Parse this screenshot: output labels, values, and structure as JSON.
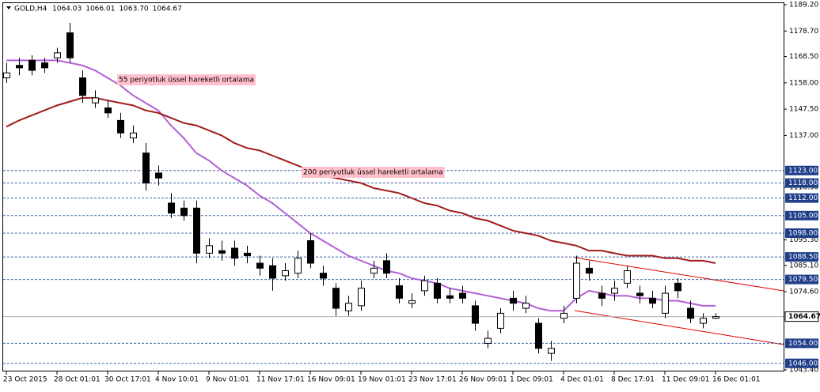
{
  "chart_data": {
    "type": "candlestick",
    "symbol": "GOLD,H4",
    "last_bar_labels": [
      "1064.03",
      "1066.01",
      "1063.70",
      "1064.67"
    ],
    "categories": [
      "23 Oct 2015",
      null,
      null,
      null,
      "28 Oct 01:01",
      null,
      null,
      null,
      "30 Oct 17:01",
      null,
      null,
      null,
      "4 Nov 10:01",
      null,
      null,
      null,
      "9 Nov 01:01",
      null,
      null,
      null,
      "11 Nov 17:01",
      null,
      null,
      null,
      "16 Nov 09:01",
      null,
      null,
      null,
      "19 Nov 01:01",
      null,
      null,
      null,
      "23 Nov 17:01",
      null,
      null,
      null,
      "26 Nov 09:01",
      null,
      null,
      null,
      "1 Dec 09:01",
      null,
      null,
      null,
      "4 Dec 01:01",
      null,
      null,
      null,
      "8 Dec 17:01",
      null,
      null,
      null,
      "11 Dec 09:01",
      null,
      null,
      null,
      "16 Dec 01:01"
    ],
    "candles": [
      [
        1160,
        1166,
        1158,
        1162
      ],
      [
        1165,
        1168,
        1161,
        1164
      ],
      [
        1167,
        1169,
        1161,
        1163
      ],
      [
        1166,
        1168,
        1162,
        1164
      ],
      [
        1168,
        1172,
        1166,
        1170
      ],
      [
        1178,
        1182,
        1166,
        1168
      ],
      [
        1160,
        1163,
        1150,
        1153
      ],
      [
        1150,
        1155,
        1148,
        1152
      ],
      [
        1148,
        1151,
        1144,
        1146
      ],
      [
        1143,
        1146,
        1136,
        1138
      ],
      [
        1136,
        1141,
        1134,
        1138
      ],
      [
        1130,
        1134,
        1115,
        1118
      ],
      [
        1122,
        1125,
        1117,
        1120
      ],
      [
        1110,
        1114,
        1104,
        1106
      ],
      [
        1108,
        1111,
        1103,
        1105
      ],
      [
        1108,
        1111,
        1086,
        1090
      ],
      [
        1090,
        1096,
        1088,
        1093
      ],
      [
        1091,
        1095,
        1087,
        1090
      ],
      [
        1092,
        1095,
        1085,
        1088
      ],
      [
        1090,
        1093,
        1086,
        1089
      ],
      [
        1086,
        1089,
        1081,
        1084
      ],
      [
        1085,
        1088,
        1075,
        1080
      ],
      [
        1081,
        1086,
        1079,
        1083
      ],
      [
        1082,
        1091,
        1080,
        1088
      ],
      [
        1095,
        1098,
        1084,
        1086
      ],
      [
        1082,
        1085,
        1077,
        1080
      ],
      [
        1076,
        1078,
        1065,
        1068
      ],
      [
        1067,
        1073,
        1065,
        1070
      ],
      [
        1069,
        1079,
        1067,
        1076
      ],
      [
        1082,
        1087,
        1080,
        1084
      ],
      [
        1087,
        1090,
        1080,
        1082
      ],
      [
        1077,
        1080,
        1070,
        1072
      ],
      [
        1070,
        1074,
        1068,
        1071
      ],
      [
        1075,
        1081,
        1073,
        1079
      ],
      [
        1078,
        1080,
        1070,
        1072
      ],
      [
        1073,
        1076,
        1070,
        1072
      ],
      [
        1074,
        1077,
        1070,
        1072
      ],
      [
        1069,
        1071,
        1059,
        1062
      ],
      [
        1054,
        1059,
        1052,
        1056
      ],
      [
        1060,
        1068,
        1058,
        1066
      ],
      [
        1072,
        1075,
        1067,
        1070
      ],
      [
        1068,
        1073,
        1066,
        1070
      ],
      [
        1062,
        1064,
        1050,
        1052
      ],
      [
        1050,
        1055,
        1047,
        1052
      ],
      [
        1064,
        1069,
        1062,
        1066
      ],
      [
        1072,
        1089,
        1070,
        1086
      ],
      [
        1084,
        1087,
        1079,
        1082
      ],
      [
        1074,
        1077,
        1069,
        1072
      ],
      [
        1074,
        1079,
        1071,
        1076
      ],
      [
        1078,
        1085,
        1076,
        1083
      ],
      [
        1074,
        1077,
        1070,
        1073
      ],
      [
        1072,
        1075,
        1068,
        1070
      ],
      [
        1066,
        1077,
        1064,
        1074
      ],
      [
        1078,
        1080,
        1072,
        1075
      ],
      [
        1068,
        1071,
        1062,
        1064
      ],
      [
        1062,
        1066,
        1060,
        1064
      ],
      [
        1064.03,
        1066.01,
        1063.7,
        1064.67
      ]
    ],
    "lines": [
      {
        "color": "#b25fd6",
        "values": [
          1167,
          1167,
          1167,
          1167,
          1167,
          1166,
          1165,
          1163,
          1160,
          1157,
          1153,
          1150,
          1147,
          1141,
          1136,
          1130,
          1127,
          1123,
          1120,
          1117,
          1113,
          1110,
          1106,
          1102,
          1098,
          1095,
          1092,
          1089,
          1087,
          1085,
          1083,
          1082,
          1080,
          1079,
          1078,
          1076,
          1075,
          1074,
          1073,
          1072,
          1071,
          1070,
          1068,
          1067,
          1067,
          1072,
          1075,
          1074,
          1073,
          1073,
          1072,
          1072,
          1071,
          1071,
          1070,
          1069,
          1069
        ]
      },
      {
        "color": "#a01c1c",
        "values": [
          1140.5,
          1143,
          1145,
          1147,
          1149,
          1150.5,
          1152,
          1152,
          1151,
          1150,
          1149,
          1147,
          1146,
          1144,
          1142,
          1141,
          1139,
          1137,
          1134,
          1132,
          1131,
          1129,
          1127,
          1125,
          1123,
          1121,
          1120,
          1119,
          1118,
          1116,
          1115,
          1114,
          1112,
          1110,
          1109,
          1107,
          1106,
          1104,
          1103,
          1101,
          1099,
          1098,
          1097,
          1095,
          1094,
          1093,
          1091,
          1091,
          1090,
          1089,
          1089,
          1089,
          1088,
          1088,
          1087,
          1087,
          1086
        ]
      }
    ],
    "annotations": [
      {
        "text": "55 periyotluk üssel hareketli ortalama",
        "at": 1161
      },
      {
        "text": "200 periyotluk üssel hareketli ortalama",
        "at": 1125
      }
    ],
    "levels": [
      {
        "value": 1123,
        "label": "1123.00"
      },
      {
        "value": 1118,
        "label": "1118.00"
      },
      {
        "value": 1112,
        "label": "1112.00"
      },
      {
        "value": 1105,
        "label": "1105.00"
      },
      {
        "value": 1098,
        "label": "1098.00"
      },
      {
        "value": 1088.5,
        "label": "1088.50"
      },
      {
        "value": 1079.5,
        "label": "1079.50"
      },
      {
        "value": 1054,
        "label": "1054.00"
      },
      {
        "value": 1046,
        "label": "1046.00"
      }
    ],
    "current_price": 1064.67,
    "ylim": [
      1043.4,
      1189.2
    ],
    "yticks": [
      {
        "value": 1189.2,
        "label": "1189.20"
      },
      {
        "value": 1178.7,
        "label": "1178.70"
      },
      {
        "value": 1168.5,
        "label": "1168.50"
      },
      {
        "value": 1158,
        "label": "1158.00"
      },
      {
        "value": 1147.5,
        "label": "1147.50"
      },
      {
        "value": 1137,
        "label": "1137.00"
      },
      {
        "value": 1116.3,
        "label": "1116.30"
      },
      {
        "value": 1095.3,
        "label": "1095.30"
      },
      {
        "value": 1085.1,
        "label": "1085.10"
      },
      {
        "value": 1074.6,
        "label": "1074.60"
      },
      {
        "value": 1043.4,
        "label": "1043.40"
      }
    ]
  }
}
